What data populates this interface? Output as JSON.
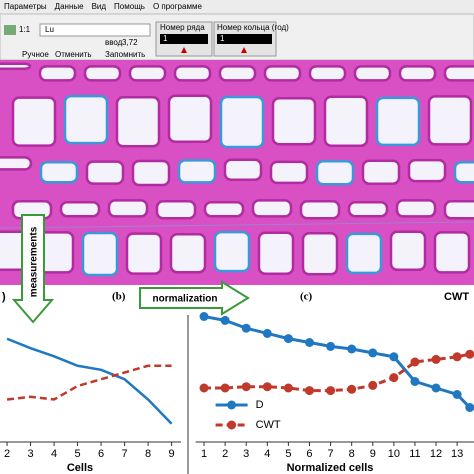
{
  "toolbar": {
    "menu": [
      "Параметры",
      "Данные",
      "Вид",
      "Помощь",
      "О программе"
    ],
    "zoom": "1:1",
    "field": "Lu",
    "input_label": "ввод",
    "input_value": "3,72",
    "buttons": [
      "Ручное",
      "Отменить",
      "Запомнить"
    ],
    "row_label": "Номер ряда",
    "row_value": "1",
    "ring_label": "Номер кольца (год)",
    "ring_value": "1"
  },
  "panels": {
    "a": ")",
    "b": "(b)",
    "c": "(c)",
    "c_title": "CWT",
    "arrow_measurements": "measurements",
    "arrow_normalization": "normalization"
  },
  "chart_data": [
    {
      "type": "line",
      "x_label": "Cells",
      "x": [
        2,
        3,
        4,
        5,
        6,
        7,
        8,
        9
      ],
      "xlim": [
        1.7,
        9.4
      ],
      "xticks": [
        2,
        3,
        4,
        5,
        6,
        7,
        8,
        9
      ],
      "ylim": [
        0,
        100
      ],
      "series": [
        {
          "color": "#1f78c1",
          "style": "solid",
          "values": [
            75,
            68,
            62,
            55,
            52,
            45,
            30,
            12
          ]
        },
        {
          "color": "#c0392b",
          "style": "dashed",
          "values": [
            30,
            32,
            30,
            40,
            45,
            50,
            55,
            55
          ]
        }
      ]
    },
    {
      "type": "line",
      "x_label": "Normalized cells",
      "x": [
        1,
        2,
        3,
        4,
        5,
        6,
        7,
        8,
        9,
        10,
        11,
        12,
        13,
        13.6
      ],
      "xlim": [
        0.6,
        13.8
      ],
      "xticks": [
        1,
        2,
        3,
        4,
        5,
        6,
        7,
        8,
        9,
        10,
        11,
        12,
        13
      ],
      "ylim": [
        0,
        100
      ],
      "legend": "bottom-left",
      "series": [
        {
          "name": "D",
          "color": "#1f78c1",
          "style": "solid",
          "values": [
            95,
            92,
            86,
            82,
            78,
            75,
            72,
            70,
            67,
            64,
            45,
            40,
            35,
            25
          ]
        },
        {
          "name": "CWT",
          "color": "#c0392b",
          "style": "dashed",
          "values": [
            40,
            40,
            41,
            41,
            40,
            38,
            38,
            39,
            42,
            48,
            60,
            62,
            64,
            66
          ]
        }
      ]
    }
  ]
}
